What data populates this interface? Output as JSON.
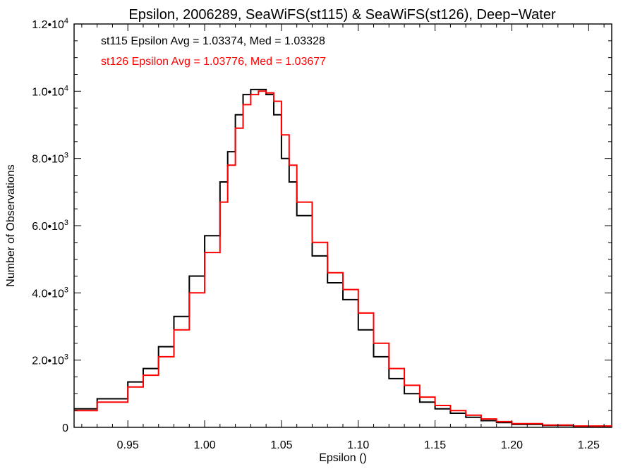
{
  "chart_data": {
    "type": "line",
    "title": "Epsilon, 2006289, SeaWiFS(st115) & SeaWiFS(st126), Deep−Water",
    "xlabel": "Epsilon ()",
    "ylabel": "Number of Observations",
    "xlim": [
      0.915,
      1.265
    ],
    "ylim": [
      0,
      12000
    ],
    "x_ticks": [
      {
        "value": 0.95,
        "label": "0.95"
      },
      {
        "value": 1.0,
        "label": "1.00"
      },
      {
        "value": 1.05,
        "label": "1.05"
      },
      {
        "value": 1.1,
        "label": "1.10"
      },
      {
        "value": 1.15,
        "label": "1.15"
      },
      {
        "value": 1.2,
        "label": "1.20"
      },
      {
        "value": 1.25,
        "label": "1.25"
      }
    ],
    "y_ticks": [
      {
        "value": 0,
        "mant": "0",
        "exp": ""
      },
      {
        "value": 2000,
        "mant": "2.0•10",
        "exp": "3"
      },
      {
        "value": 4000,
        "mant": "4.0•10",
        "exp": "3"
      },
      {
        "value": 6000,
        "mant": "6.0•10",
        "exp": "3"
      },
      {
        "value": 8000,
        "mant": "8.0•10",
        "exp": "3"
      },
      {
        "value": 10000,
        "mant": "1.0•10",
        "exp": "4"
      },
      {
        "value": 12000,
        "mant": "1.2•10",
        "exp": "4"
      }
    ],
    "annotations": [
      {
        "text": "st115 Epsilon Avg = 1.03374, Med = 1.03328",
        "color": "#000000"
      },
      {
        "text": "st126 Epsilon Avg = 1.03776, Med = 1.03677",
        "color": "#ff0000"
      }
    ],
    "grid": false,
    "series": [
      {
        "color": "#000000",
        "x": [
          0.915,
          0.93,
          0.95,
          0.96,
          0.97,
          0.98,
          0.99,
          1.0,
          1.01,
          1.015,
          1.02,
          1.025,
          1.03,
          1.035,
          1.04,
          1.045,
          1.05,
          1.055,
          1.06,
          1.07,
          1.08,
          1.09,
          1.1,
          1.11,
          1.12,
          1.13,
          1.14,
          1.15,
          1.16,
          1.17,
          1.18,
          1.19,
          1.2,
          1.22,
          1.24,
          1.265
        ],
        "y": [
          550,
          850,
          1350,
          1750,
          2400,
          3300,
          4500,
          5700,
          7300,
          8200,
          9300,
          9900,
          10050,
          10050,
          9900,
          9300,
          8000,
          7300,
          6300,
          5100,
          4300,
          3800,
          2900,
          2100,
          1450,
          1000,
          750,
          550,
          420,
          300,
          200,
          140,
          90,
          55,
          30,
          20
        ]
      },
      {
        "color": "#ff0000",
        "x": [
          0.915,
          0.93,
          0.95,
          0.96,
          0.97,
          0.98,
          0.99,
          1.0,
          1.01,
          1.015,
          1.02,
          1.025,
          1.03,
          1.035,
          1.04,
          1.045,
          1.05,
          1.055,
          1.06,
          1.07,
          1.08,
          1.09,
          1.1,
          1.11,
          1.12,
          1.13,
          1.14,
          1.15,
          1.16,
          1.17,
          1.18,
          1.19,
          1.2,
          1.22,
          1.24,
          1.265
        ],
        "y": [
          500,
          750,
          1200,
          1550,
          2100,
          2900,
          4000,
          5200,
          6700,
          7800,
          8900,
          9600,
          9900,
          10000,
          9950,
          9700,
          8700,
          7800,
          6700,
          5500,
          4600,
          4100,
          3400,
          2500,
          1750,
          1250,
          900,
          650,
          500,
          360,
          250,
          170,
          110,
          70,
          40,
          25
        ]
      }
    ]
  }
}
